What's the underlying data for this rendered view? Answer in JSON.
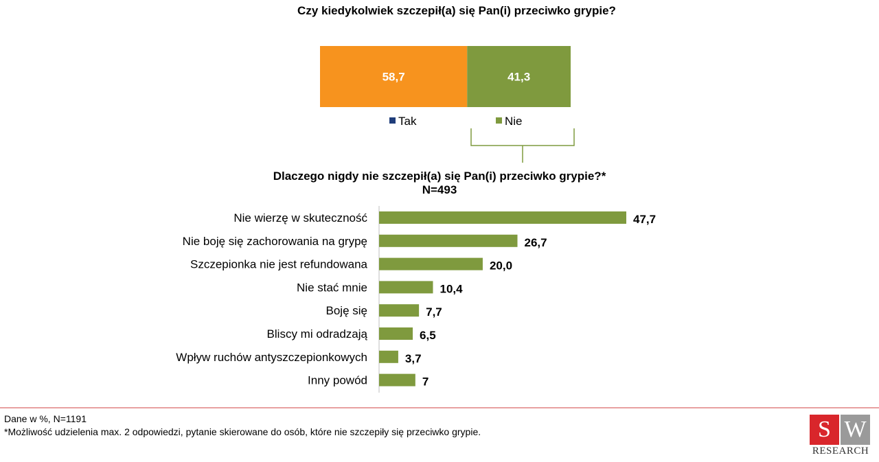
{
  "title1": "Czy kiedykolwiek szczepił(a) się Pan(i) przeciwko grypie?",
  "title2": {
    "line1": "Dlaczego nigdy nie szczepił(a) się Pan(i) przeciwko grypie?*",
    "line2": "N=493"
  },
  "colors": {
    "tak": "#f7931e",
    "nie": "#7f9a3e",
    "tak_legend": "#1f3d7a",
    "bar": "#7f9a3e",
    "divider": "#e8a0a0",
    "axis": "#bfbfbf"
  },
  "chart_data": [
    {
      "type": "bar",
      "orientation": "horizontal-stacked",
      "title": "Czy kiedykolwiek szczepił(a) się Pan(i) przeciwko grypie?",
      "series": [
        {
          "name": "Tak",
          "values": [
            58.7
          ],
          "label": "58,7"
        },
        {
          "name": "Nie",
          "values": [
            41.3
          ],
          "label": "41,3"
        }
      ],
      "legend": [
        "Tak",
        "Nie"
      ],
      "legend_position": "bottom",
      "xlim": [
        0,
        100
      ]
    },
    {
      "type": "bar",
      "orientation": "horizontal",
      "title": "Dlaczego nigdy nie szczepił(a) się Pan(i) przeciwko grypie?* N=493",
      "categories": [
        "Nie wierzę w skuteczność",
        "Nie boję się zachorowania na grypę",
        "Szczepionka nie jest refundowana",
        "Nie stać mnie ",
        "Boję się",
        "Bliscy mi odradzają",
        "Wpływ ruchów antyszczepionkowych",
        "Inny powód"
      ],
      "values": [
        47.7,
        26.7,
        20.0,
        10.4,
        7.7,
        6.5,
        3.7,
        7
      ],
      "value_labels": [
        "47,7",
        "26,7",
        "20,0",
        "10,4",
        "7,7",
        "6,5",
        "3,7",
        "7"
      ],
      "xlim": [
        0,
        50
      ]
    }
  ],
  "footer": {
    "line1": "Dane w %, N=1191",
    "line2": "*Możliwość udzielenia max. 2 odpowiedzi, pytanie skierowane do osób, które nie szczepiły się przeciwko grypie."
  },
  "logo": {
    "s": "S",
    "w": "W",
    "text": "RESEARCH"
  }
}
